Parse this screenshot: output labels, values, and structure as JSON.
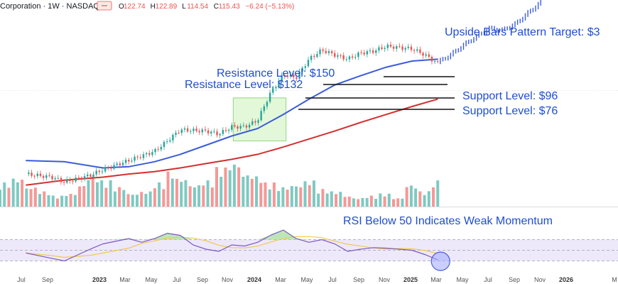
{
  "header": {
    "symbol": "Corporation · 1W · NASDAQ",
    "ohlc": [
      {
        "k": "O",
        "v": "122.74"
      },
      {
        "k": "H",
        "v": "122.89"
      },
      {
        "k": "L",
        "v": "114.54"
      },
      {
        "k": "C",
        "v": "115.43"
      }
    ],
    "change": "−6.24 (−5.13%)",
    "colors": {
      "up": "#26a69a",
      "down": "#ef5350"
    }
  },
  "annotations": {
    "target": "Upside Bars Pattern Target: $3",
    "resistance_high": "Resistance Level: $150",
    "resistance_low": "Resistance Level: $132",
    "support_high": "Support Level: $96",
    "support_low": "Support Level: $76",
    "rsi_note": "RSI Below 50 Indicates Weak Momentum"
  },
  "chart_data": {
    "type": "candlestick",
    "interval": "1W",
    "x_ticks": [
      "Jul",
      "Sep",
      "2023",
      "Mar",
      "May",
      "Jul",
      "Sep",
      "Nov",
      "2024",
      "Mar",
      "May",
      "Jul",
      "Sep",
      "Nov",
      "2025",
      "Mar",
      "May",
      "Jul",
      "Sep",
      "Nov",
      "2026",
      "M"
    ],
    "x_tick_years": [
      "2023",
      "2024",
      "2025",
      "2026"
    ],
    "approx_close_path": [
      {
        "date": "2022-07",
        "close": 38
      },
      {
        "date": "2022-09",
        "close": 33
      },
      {
        "date": "2022-10",
        "close": 25
      },
      {
        "date": "2022-12",
        "close": 36
      },
      {
        "date": "2023-01",
        "close": 45
      },
      {
        "date": "2023-03",
        "close": 60
      },
      {
        "date": "2023-05",
        "close": 75
      },
      {
        "date": "2023-06",
        "close": 92
      },
      {
        "date": "2023-07",
        "close": 110
      },
      {
        "date": "2023-09",
        "close": 108
      },
      {
        "date": "2023-10",
        "close": 103
      },
      {
        "date": "2023-11",
        "close": 115
      },
      {
        "date": "2023-12",
        "close": 115
      },
      {
        "date": "2024-01",
        "close": 125
      },
      {
        "date": "2024-02",
        "close": 170
      },
      {
        "date": "2024-03",
        "close": 200
      },
      {
        "date": "2024-04",
        "close": 195
      },
      {
        "date": "2024-05",
        "close": 225
      },
      {
        "date": "2024-06",
        "close": 240
      },
      {
        "date": "2024-07",
        "close": 232
      },
      {
        "date": "2024-08",
        "close": 225
      },
      {
        "date": "2024-09",
        "close": 235
      },
      {
        "date": "2024-10",
        "close": 238
      },
      {
        "date": "2024-11",
        "close": 246
      },
      {
        "date": "2024-12",
        "close": 244
      },
      {
        "date": "2025-01",
        "close": 242
      },
      {
        "date": "2025-02",
        "close": 232
      },
      {
        "date": "2025-03",
        "close": 218
      }
    ],
    "projection_path": [
      {
        "date": "2025-03",
        "close": 220
      },
      {
        "date": "2025-04",
        "close": 232
      },
      {
        "date": "2025-05",
        "close": 248
      },
      {
        "date": "2025-06",
        "close": 262
      },
      {
        "date": "2025-07",
        "close": 275
      },
      {
        "date": "2025-08",
        "close": 272
      },
      {
        "date": "2025-09",
        "close": 282
      },
      {
        "date": "2025-10",
        "close": 300
      },
      {
        "date": "2025-11",
        "close": 318
      }
    ],
    "levels": [
      {
        "label": "Resistance Level: $150",
        "value": 150
      },
      {
        "label": "Resistance Level: $132",
        "value": 132
      },
      {
        "label": "Support Level: $96",
        "value": 96
      },
      {
        "label": "Support Level: $76",
        "value": 76
      }
    ],
    "ma_fast_path": [
      {
        "date": "2022-07",
        "v": 60
      },
      {
        "date": "2022-10",
        "v": 58
      },
      {
        "date": "2023-01",
        "v": 48
      },
      {
        "date": "2023-03",
        "v": 50
      },
      {
        "date": "2023-05",
        "v": 58
      },
      {
        "date": "2023-07",
        "v": 70
      },
      {
        "date": "2023-09",
        "v": 85
      },
      {
        "date": "2023-11",
        "v": 100
      },
      {
        "date": "2024-01",
        "v": 112
      },
      {
        "date": "2024-03",
        "v": 135
      },
      {
        "date": "2024-05",
        "v": 160
      },
      {
        "date": "2024-07",
        "v": 183
      },
      {
        "date": "2024-09",
        "v": 198
      },
      {
        "date": "2024-11",
        "v": 212
      },
      {
        "date": "2025-01",
        "v": 222
      },
      {
        "date": "2025-03",
        "v": 225
      }
    ],
    "ma_slow_path": [
      {
        "date": "2022-07",
        "v": 20
      },
      {
        "date": "2022-10",
        "v": 28
      },
      {
        "date": "2023-01",
        "v": 33
      },
      {
        "date": "2023-03",
        "v": 38
      },
      {
        "date": "2023-05",
        "v": 42
      },
      {
        "date": "2023-07",
        "v": 48
      },
      {
        "date": "2023-09",
        "v": 55
      },
      {
        "date": "2023-11",
        "v": 62
      },
      {
        "date": "2024-01",
        "v": 70
      },
      {
        "date": "2024-03",
        "v": 82
      },
      {
        "date": "2024-05",
        "v": 95
      },
      {
        "date": "2024-07",
        "v": 108
      },
      {
        "date": "2024-09",
        "v": 122
      },
      {
        "date": "2024-11",
        "v": 135
      },
      {
        "date": "2025-01",
        "v": 148
      },
      {
        "date": "2025-03",
        "v": 160
      }
    ],
    "rsi_path": [
      {
        "date": "2022-07",
        "v": 45
      },
      {
        "date": "2022-09",
        "v": 35
      },
      {
        "date": "2022-10",
        "v": 30
      },
      {
        "date": "2022-12",
        "v": 52
      },
      {
        "date": "2023-01",
        "v": 62
      },
      {
        "date": "2023-03",
        "v": 72
      },
      {
        "date": "2023-04",
        "v": 65
      },
      {
        "date": "2023-05",
        "v": 72
      },
      {
        "date": "2023-06",
        "v": 82
      },
      {
        "date": "2023-07",
        "v": 78
      },
      {
        "date": "2023-08",
        "v": 60
      },
      {
        "date": "2023-09",
        "v": 52
      },
      {
        "date": "2023-10",
        "v": 48
      },
      {
        "date": "2023-11",
        "v": 60
      },
      {
        "date": "2023-12",
        "v": 58
      },
      {
        "date": "2024-01",
        "v": 65
      },
      {
        "date": "2024-02",
        "v": 78
      },
      {
        "date": "2024-03",
        "v": 88
      },
      {
        "date": "2024-04",
        "v": 72
      },
      {
        "date": "2024-05",
        "v": 65
      },
      {
        "date": "2024-06",
        "v": 70
      },
      {
        "date": "2024-07",
        "v": 62
      },
      {
        "date": "2024-08",
        "v": 48
      },
      {
        "date": "2024-09",
        "v": 52
      },
      {
        "date": "2024-10",
        "v": 55
      },
      {
        "date": "2024-11",
        "v": 54
      },
      {
        "date": "2024-12",
        "v": 52
      },
      {
        "date": "2025-01",
        "v": 50
      },
      {
        "date": "2025-02",
        "v": 42
      },
      {
        "date": "2025-03",
        "v": 32
      }
    ],
    "rsi_levels": [
      30,
      50,
      70
    ],
    "volume_relative": [
      0.55,
      0.65,
      0.45,
      0.35,
      0.25,
      0.3,
      0.5,
      0.7,
      0.6,
      0.45,
      0.3,
      0.35,
      0.55,
      0.8,
      0.65,
      0.5,
      0.6,
      0.9,
      1.0,
      0.75,
      0.7,
      0.55,
      0.45,
      0.5,
      0.6,
      0.4,
      0.35,
      0.25,
      0.2,
      0.25,
      0.3,
      0.2,
      0.5,
      0.35,
      0.6
    ]
  }
}
